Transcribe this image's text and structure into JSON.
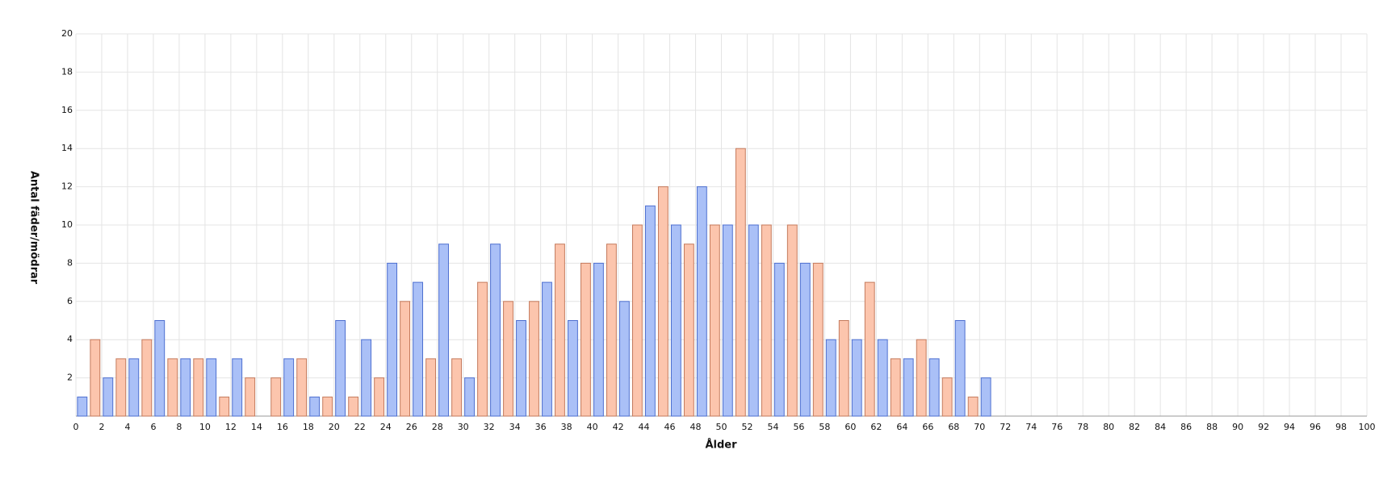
{
  "chart_data": {
    "type": "bar",
    "x_label": "Ålder",
    "y_label": "Antal fäder/mödrar",
    "xlim": [
      0,
      100
    ],
    "xticks": [
      0,
      2,
      4,
      6,
      8,
      10,
      12,
      14,
      16,
      18,
      20,
      22,
      24,
      26,
      28,
      30,
      32,
      34,
      36,
      38,
      40,
      42,
      44,
      46,
      48,
      50,
      52,
      54,
      56,
      58,
      60,
      62,
      64,
      66,
      68,
      70,
      72,
      74,
      76,
      78,
      80,
      82,
      84,
      86,
      88,
      90,
      92,
      94,
      96,
      98,
      100
    ],
    "ylim": [
      0,
      20
    ],
    "yticks": [
      2,
      4,
      6,
      8,
      10,
      12,
      14,
      16,
      18,
      20
    ],
    "grid": true,
    "series": [
      {
        "color": "#aac0f7",
        "x": [
          0,
          2,
          4,
          6,
          8,
          10,
          12,
          14,
          16,
          18,
          20,
          22,
          24,
          26,
          28,
          30,
          32,
          34,
          36,
          38,
          40,
          42,
          44,
          46,
          48,
          50,
          52,
          54,
          56,
          58,
          60,
          62,
          64,
          66,
          68,
          70
        ],
        "values": [
          1,
          2,
          3,
          5,
          3,
          3,
          3,
          0,
          3,
          1,
          5,
          4,
          8,
          7,
          9,
          2,
          9,
          5,
          7,
          5,
          8,
          6,
          11,
          10,
          12,
          10,
          10,
          8,
          8,
          4,
          4,
          4,
          3,
          3,
          5,
          2
        ]
      },
      {
        "color": "#fcc5ad",
        "x": [
          1,
          3,
          5,
          7,
          9,
          11,
          13,
          15,
          17,
          19,
          21,
          23,
          25,
          27,
          29,
          31,
          33,
          35,
          37,
          39,
          41,
          43,
          45,
          47,
          49,
          51,
          53,
          55,
          57,
          59,
          61,
          63,
          65,
          67,
          69
        ],
        "values": [
          4,
          3,
          4,
          3,
          3,
          1,
          2,
          2,
          3,
          1,
          1,
          2,
          6,
          3,
          3,
          7,
          6,
          6,
          9,
          8,
          9,
          10,
          12,
          9,
          10,
          14,
          10,
          10,
          8,
          5,
          7,
          3,
          4,
          2,
          1
        ]
      }
    ]
  }
}
